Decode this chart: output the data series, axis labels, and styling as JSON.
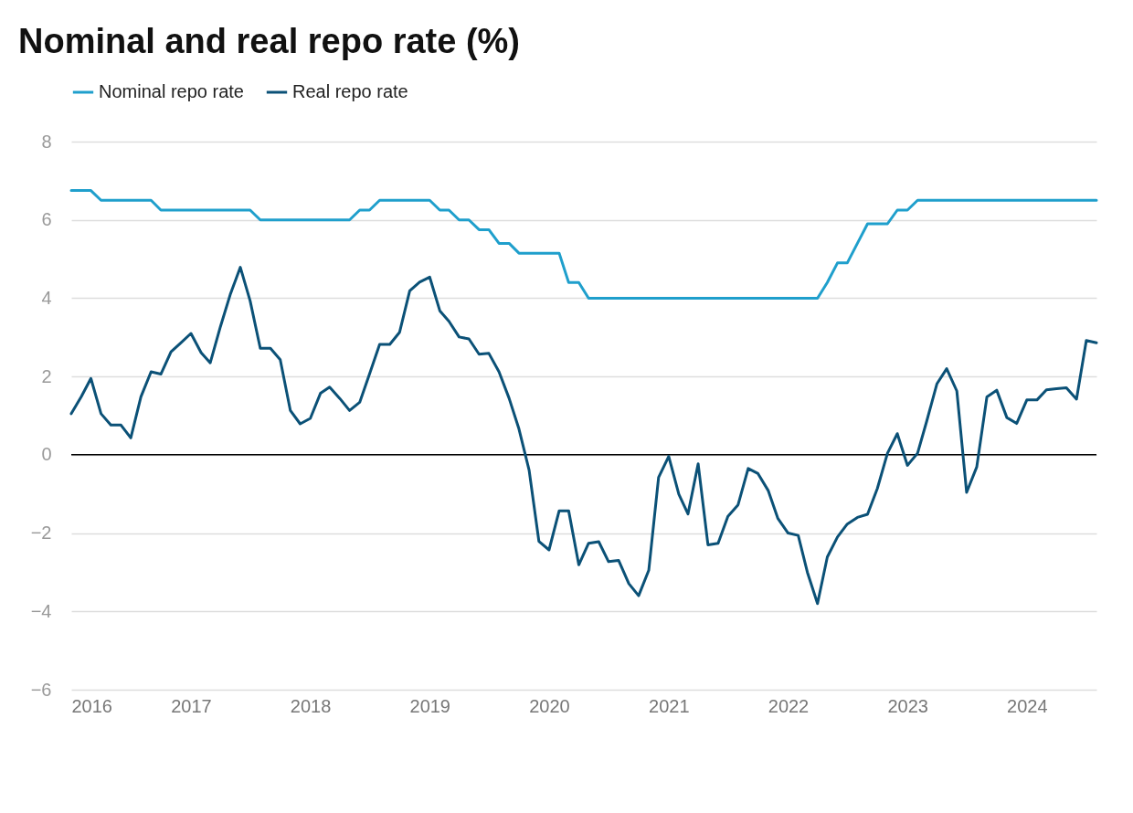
{
  "chart_data": {
    "type": "line",
    "title": "Nominal and real repo rate (%)",
    "x": [
      "2016-01",
      "2016-02",
      "2016-03",
      "2016-04",
      "2016-05",
      "2016-06",
      "2016-07",
      "2016-08",
      "2016-09",
      "2016-10",
      "2016-11",
      "2016-12",
      "2017-01",
      "2017-02",
      "2017-03",
      "2017-04",
      "2017-05",
      "2017-06",
      "2017-07",
      "2017-08",
      "2017-09",
      "2017-10",
      "2017-11",
      "2017-12",
      "2018-01",
      "2018-02",
      "2018-03",
      "2018-04",
      "2018-05",
      "2018-06",
      "2018-07",
      "2018-08",
      "2018-09",
      "2018-10",
      "2018-11",
      "2018-12",
      "2019-01",
      "2019-02",
      "2019-03",
      "2019-04",
      "2019-05",
      "2019-06",
      "2019-07",
      "2019-08",
      "2019-09",
      "2019-10",
      "2019-11",
      "2019-12",
      "2020-01",
      "2020-02",
      "2020-03",
      "2020-04",
      "2020-05",
      "2020-06",
      "2020-07",
      "2020-08",
      "2020-09",
      "2020-10",
      "2020-11",
      "2020-12",
      "2021-01",
      "2021-02",
      "2021-03",
      "2021-04",
      "2021-05",
      "2021-06",
      "2021-07",
      "2021-08",
      "2021-09",
      "2021-10",
      "2021-11",
      "2021-12",
      "2022-01",
      "2022-02",
      "2022-03",
      "2022-04",
      "2022-05",
      "2022-06",
      "2022-07",
      "2022-08",
      "2022-09",
      "2022-10",
      "2022-11",
      "2022-12",
      "2023-01",
      "2023-02",
      "2023-03",
      "2023-04",
      "2023-05",
      "2023-06",
      "2023-07",
      "2023-08",
      "2023-09",
      "2023-10",
      "2023-11",
      "2023-12",
      "2024-01",
      "2024-02",
      "2024-03",
      "2024-04",
      "2024-05",
      "2024-06",
      "2024-07",
      "2024-08"
    ],
    "series": [
      {
        "name": "Nominal repo rate",
        "color": "#1f9fcc",
        "values": [
          6.75,
          6.75,
          6.75,
          6.5,
          6.5,
          6.5,
          6.5,
          6.5,
          6.5,
          6.25,
          6.25,
          6.25,
          6.25,
          6.25,
          6.25,
          6.25,
          6.25,
          6.25,
          6.25,
          6.0,
          6.0,
          6.0,
          6.0,
          6.0,
          6.0,
          6.0,
          6.0,
          6.0,
          6.0,
          6.25,
          6.25,
          6.5,
          6.5,
          6.5,
          6.5,
          6.5,
          6.5,
          6.25,
          6.25,
          6.0,
          6.0,
          5.75,
          5.75,
          5.4,
          5.4,
          5.15,
          5.15,
          5.15,
          5.15,
          5.15,
          4.4,
          4.4,
          4.0,
          4.0,
          4.0,
          4.0,
          4.0,
          4.0,
          4.0,
          4.0,
          4.0,
          4.0,
          4.0,
          4.0,
          4.0,
          4.0,
          4.0,
          4.0,
          4.0,
          4.0,
          4.0,
          4.0,
          4.0,
          4.0,
          4.0,
          4.0,
          4.4,
          4.9,
          4.9,
          5.4,
          5.9,
          5.9,
          5.9,
          6.25,
          6.25,
          6.5,
          6.5,
          6.5,
          6.5,
          6.5,
          6.5,
          6.5,
          6.5,
          6.5,
          6.5,
          6.5,
          6.5,
          6.5,
          6.5,
          6.5,
          6.5,
          6.5,
          6.5,
          6.5
        ]
      },
      {
        "name": "Real repo rate",
        "color": "#0b5177",
        "values": [
          1.05,
          1.49,
          1.95,
          1.05,
          0.76,
          0.76,
          0.43,
          1.48,
          2.12,
          2.06,
          2.63,
          2.86,
          3.1,
          2.61,
          2.35,
          3.27,
          4.09,
          4.79,
          3.93,
          2.72,
          2.72,
          2.43,
          1.13,
          0.79,
          0.93,
          1.57,
          1.73,
          1.44,
          1.13,
          1.34,
          2.06,
          2.82,
          2.82,
          3.13,
          4.19,
          4.41,
          4.54,
          3.68,
          3.41,
          3.01,
          2.96,
          2.57,
          2.59,
          2.12,
          1.44,
          0.66,
          -0.39,
          -2.21,
          -2.43,
          -1.43,
          -1.43,
          -2.81,
          -2.26,
          -2.22,
          -2.73,
          -2.7,
          -3.29,
          -3.6,
          -2.95,
          -0.58,
          -0.04,
          -1.01,
          -1.51,
          -0.23,
          -2.3,
          -2.26,
          -1.57,
          -1.28,
          -0.35,
          -0.48,
          -0.91,
          -1.63,
          -2.0,
          -2.06,
          -3.0,
          -3.8,
          -2.61,
          -2.1,
          -1.77,
          -1.6,
          -1.52,
          -0.86,
          0.04,
          0.54,
          -0.27,
          0.04,
          0.86,
          1.81,
          2.2,
          1.63,
          -0.96,
          -0.31,
          1.48,
          1.65,
          0.95,
          0.8,
          1.4,
          1.4,
          1.66,
          1.69,
          1.71,
          1.42,
          2.92,
          2.86
        ]
      }
    ],
    "xlim": [
      "2016-01",
      "2024-08"
    ],
    "xticks": [
      "2016",
      "2017",
      "2018",
      "2019",
      "2020",
      "2021",
      "2022",
      "2023",
      "2024"
    ],
    "ylim": [
      -6,
      8
    ],
    "yticks": [
      -6,
      -4,
      -2,
      0,
      2,
      4,
      6,
      8
    ],
    "ref_lines": [
      {
        "axis": "y",
        "value": 0,
        "color": "#000000"
      }
    ],
    "grid": "y",
    "legend": "top left",
    "line_style": "solid"
  }
}
